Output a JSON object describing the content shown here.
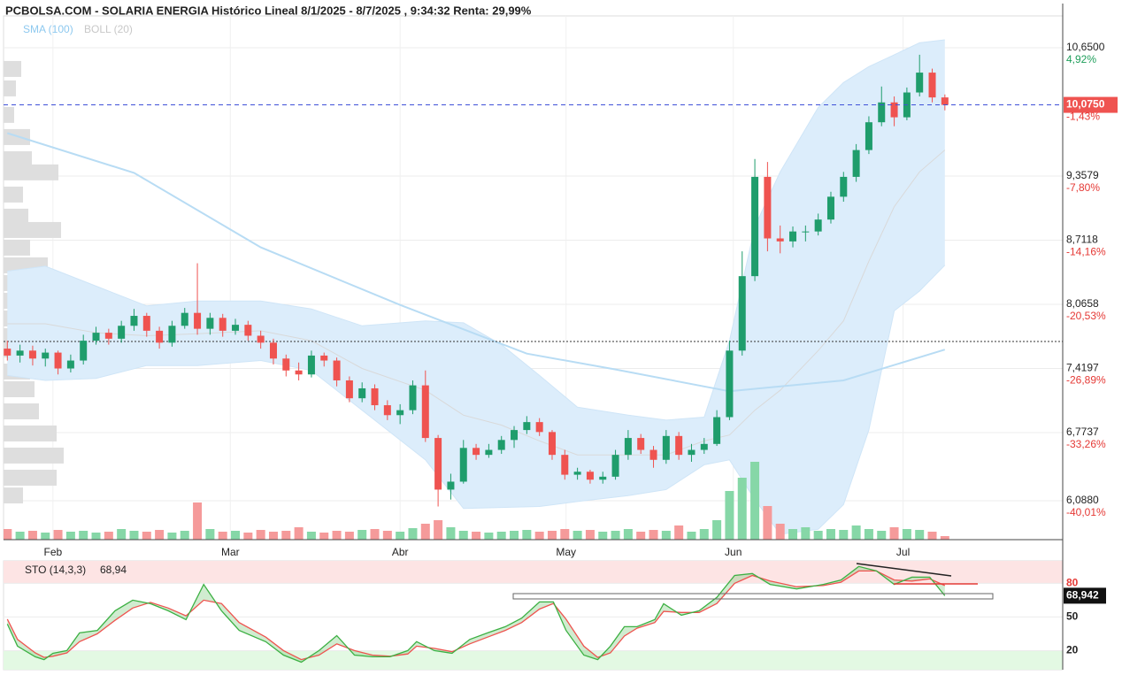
{
  "title": "PCBOLSA.COM - SOLARIA ENERGIA Histórico Lineal 8/1/2025 - 8/7/2025 , 9:34:32 Renta: 29,99%",
  "chart_data": [
    {
      "type": "candlestick",
      "up_color": "#1f9d6c",
      "down_color": "#ef5350",
      "xlim": [
        -0.3,
        83.3
      ],
      "ylim": [
        5.696,
        10.971
      ],
      "xticks": [
        {
          "value": 3.6,
          "label": "Feb"
        },
        {
          "value": 17.6,
          "label": "Mar"
        },
        {
          "value": 31.0,
          "label": "Abr"
        },
        {
          "value": 44.1,
          "label": "May"
        },
        {
          "value": 57.3,
          "label": "Jun"
        },
        {
          "value": 70.7,
          "label": "Jul"
        }
      ],
      "yticks": [
        {
          "value": 10.65,
          "label": "10,6500"
        },
        {
          "value": 9.3579,
          "label": "9,3579"
        },
        {
          "value": 8.7118,
          "label": "8,7118"
        },
        {
          "value": 8.0658,
          "label": "8,0658"
        },
        {
          "value": 7.4197,
          "label": "7,4197"
        },
        {
          "value": 6.7737,
          "label": "6,7737"
        },
        {
          "value": 6.088,
          "label": "6,0880"
        }
      ],
      "last_price": {
        "value": 10.075,
        "label": "10,0750"
      },
      "pct_labels": [
        {
          "value": 4.92,
          "label": "4,92%"
        },
        {
          "value": -1.43,
          "label": "-1,43%"
        },
        {
          "value": -7.8,
          "label": "-7,80%"
        },
        {
          "value": -14.16,
          "label": "-14,16%"
        },
        {
          "value": -20.53,
          "label": "-20,53%"
        },
        {
          "value": -26.89,
          "label": "-26,89%"
        },
        {
          "value": -33.26,
          "label": "-33,26%"
        },
        {
          "value": -40.01,
          "label": "-40,01%"
        }
      ],
      "reference_line": 7.692,
      "candles": [
        [
          7.62,
          7.7,
          7.5,
          7.55
        ],
        [
          7.55,
          7.66,
          7.48,
          7.6
        ],
        [
          7.6,
          7.65,
          7.45,
          7.52
        ],
        [
          7.52,
          7.62,
          7.44,
          7.58
        ],
        [
          7.58,
          7.6,
          7.36,
          7.42
        ],
        [
          7.42,
          7.56,
          7.38,
          7.5
        ],
        [
          7.5,
          7.76,
          7.46,
          7.7
        ],
        [
          7.7,
          7.84,
          7.66,
          7.78
        ],
        [
          7.78,
          7.82,
          7.66,
          7.72
        ],
        [
          7.72,
          7.9,
          7.68,
          7.85
        ],
        [
          7.85,
          8.02,
          7.8,
          7.95
        ],
        [
          7.95,
          7.98,
          7.74,
          7.8
        ],
        [
          7.8,
          7.84,
          7.62,
          7.68
        ],
        [
          7.68,
          7.9,
          7.64,
          7.85
        ],
        [
          7.85,
          8.03,
          7.82,
          7.98
        ],
        [
          7.98,
          8.48,
          7.76,
          7.82
        ],
        [
          7.82,
          7.98,
          7.76,
          7.93
        ],
        [
          7.93,
          7.97,
          7.74,
          7.8
        ],
        [
          7.8,
          7.92,
          7.76,
          7.86
        ],
        [
          7.86,
          7.9,
          7.7,
          7.75
        ],
        [
          7.75,
          7.8,
          7.62,
          7.68
        ],
        [
          7.68,
          7.72,
          7.46,
          7.52
        ],
        [
          7.52,
          7.56,
          7.34,
          7.4
        ],
        [
          7.4,
          7.48,
          7.3,
          7.36
        ],
        [
          7.36,
          7.6,
          7.33,
          7.55
        ],
        [
          7.55,
          7.58,
          7.44,
          7.5
        ],
        [
          7.5,
          7.53,
          7.24,
          7.3
        ],
        [
          7.3,
          7.34,
          7.08,
          7.12
        ],
        [
          7.12,
          7.28,
          7.08,
          7.22
        ],
        [
          7.22,
          7.26,
          7.0,
          7.05
        ],
        [
          7.05,
          7.1,
          6.9,
          6.95
        ],
        [
          6.95,
          7.06,
          6.86,
          7.0
        ],
        [
          7.0,
          7.3,
          6.96,
          7.25
        ],
        [
          7.25,
          7.4,
          6.68,
          6.72
        ],
        [
          6.72,
          6.75,
          6.03,
          6.2
        ],
        [
          6.2,
          6.36,
          6.1,
          6.28
        ],
        [
          6.28,
          6.7,
          6.26,
          6.62
        ],
        [
          6.62,
          6.66,
          6.5,
          6.55
        ],
        [
          6.55,
          6.66,
          6.52,
          6.6
        ],
        [
          6.6,
          6.74,
          6.56,
          6.7
        ],
        [
          6.7,
          6.84,
          6.62,
          6.8
        ],
        [
          6.8,
          6.94,
          6.76,
          6.88
        ],
        [
          6.88,
          6.92,
          6.74,
          6.78
        ],
        [
          6.78,
          6.8,
          6.5,
          6.55
        ],
        [
          6.55,
          6.6,
          6.3,
          6.35
        ],
        [
          6.35,
          6.42,
          6.3,
          6.38
        ],
        [
          6.38,
          6.4,
          6.26,
          6.3
        ],
        [
          6.3,
          6.38,
          6.26,
          6.33
        ],
        [
          6.33,
          6.6,
          6.3,
          6.55
        ],
        [
          6.55,
          6.8,
          6.5,
          6.72
        ],
        [
          6.72,
          6.76,
          6.56,
          6.6
        ],
        [
          6.6,
          6.64,
          6.42,
          6.5
        ],
        [
          6.5,
          6.8,
          6.46,
          6.74
        ],
        [
          6.74,
          6.78,
          6.5,
          6.55
        ],
        [
          6.55,
          6.66,
          6.48,
          6.6
        ],
        [
          6.6,
          6.72,
          6.56,
          6.66
        ],
        [
          6.66,
          7.0,
          6.64,
          6.93
        ],
        [
          6.93,
          7.7,
          6.9,
          7.6
        ],
        [
          7.6,
          8.6,
          7.55,
          8.35
        ],
        [
          8.35,
          9.53,
          8.3,
          9.35
        ],
        [
          9.35,
          9.5,
          8.6,
          8.73
        ],
        [
          8.73,
          8.86,
          8.58,
          8.7
        ],
        [
          8.7,
          8.85,
          8.64,
          8.8
        ],
        [
          8.8,
          8.86,
          8.7,
          8.8
        ],
        [
          8.8,
          8.98,
          8.76,
          8.92
        ],
        [
          8.92,
          9.2,
          8.88,
          9.15
        ],
        [
          9.15,
          9.4,
          9.1,
          9.35
        ],
        [
          9.35,
          9.68,
          9.3,
          9.62
        ],
        [
          9.62,
          9.96,
          9.58,
          9.9
        ],
        [
          9.9,
          10.26,
          9.86,
          10.1
        ],
        [
          10.1,
          10.16,
          9.86,
          9.95
        ],
        [
          9.95,
          10.25,
          9.92,
          10.2
        ],
        [
          10.2,
          10.58,
          10.16,
          10.4
        ],
        [
          10.4,
          10.44,
          10.1,
          10.15
        ],
        [
          10.15,
          10.18,
          10.02,
          10.075
        ]
      ],
      "volume_ylim": [
        0,
        100
      ],
      "volume_up_color": "#86d7a7",
      "volume_down_color": "#f59a9a",
      "volumes": [
        12,
        9,
        10,
        8,
        11,
        9,
        10,
        8,
        9,
        12,
        10,
        9,
        11,
        8,
        10,
        42,
        12,
        9,
        10,
        8,
        11,
        9,
        10,
        14,
        9,
        8,
        10,
        9,
        11,
        12,
        10,
        9,
        13,
        18,
        22,
        14,
        10,
        9,
        8,
        9,
        10,
        11,
        9,
        10,
        12,
        10,
        11,
        9,
        10,
        12,
        9,
        11,
        10,
        16,
        9,
        12,
        22,
        55,
        70,
        88,
        38,
        18,
        12,
        14,
        10,
        12,
        11,
        16,
        12,
        10,
        14,
        12,
        11,
        9,
        4
      ],
      "volume_profile": {
        "color": "#dedede",
        "prices": [
          10.437,
          10.241,
          9.974,
          9.751,
          9.528,
          9.395,
          9.172,
          8.949,
          8.815,
          8.637,
          8.459,
          8.28,
          8.102,
          7.924,
          7.746,
          7.612,
          7.389,
          7.211,
          6.988,
          6.765,
          6.543,
          6.32,
          6.141
        ],
        "values": [
          20,
          14,
          12,
          30,
          32,
          62,
          22,
          28,
          65,
          30,
          50,
          22,
          35,
          58,
          60,
          50,
          30,
          35,
          40,
          60,
          68,
          60,
          22
        ]
      },
      "sma": {
        "name": "SMA (100)",
        "color": "#b8dcf4",
        "x": [
          0,
          10,
          20,
          31,
          41,
          48,
          57,
          66,
          74
        ],
        "values": [
          9.79,
          9.39,
          8.64,
          8.06,
          7.57,
          7.41,
          7.19,
          7.3,
          7.61
        ]
      },
      "boll": {
        "name": "BOLL (20)",
        "color": "#d9d9d9",
        "fill": "#dcedfb",
        "x": [
          0,
          3,
          7,
          11,
          15,
          20,
          24,
          28,
          33,
          36,
          39,
          42,
          45,
          49,
          52,
          55,
          57,
          59,
          61,
          64,
          66,
          68,
          70,
          72,
          74
        ],
        "upper": [
          8.4,
          8.45,
          8.25,
          8.05,
          8.1,
          8.1,
          8.02,
          7.85,
          7.9,
          7.88,
          7.66,
          7.35,
          7.03,
          6.95,
          6.9,
          6.93,
          7.7,
          8.85,
          9.4,
          10.05,
          10.3,
          10.46,
          10.58,
          10.7,
          10.73
        ],
        "middle": [
          7.87,
          7.87,
          7.78,
          7.75,
          7.77,
          7.8,
          7.7,
          7.42,
          7.2,
          6.95,
          6.85,
          6.69,
          6.55,
          6.55,
          6.55,
          6.69,
          6.75,
          7.0,
          7.2,
          7.6,
          7.9,
          8.5,
          9.05,
          9.4,
          9.62
        ],
        "lower": [
          7.35,
          7.3,
          7.32,
          7.45,
          7.45,
          7.5,
          7.4,
          7.0,
          6.5,
          6.01,
          6.02,
          6.03,
          6.08,
          6.14,
          6.2,
          6.45,
          6.5,
          6.1,
          5.75,
          5.8,
          6.05,
          6.8,
          8.0,
          8.2,
          8.46
        ]
      }
    },
    {
      "type": "stochastic",
      "title": "STO (14,3,3)",
      "last": {
        "value": 68.94,
        "label": "68,94"
      },
      "axis_last": {
        "value": 68.942,
        "label": "68,942"
      },
      "xlim": [
        -0.3,
        83.3
      ],
      "ylim": [
        3,
        100
      ],
      "yticks": [
        20,
        50,
        80
      ],
      "ytick_colors": [
        "#222",
        "#222",
        "#e53935"
      ],
      "bands": [
        {
          "from": 80,
          "to": 100,
          "color": "#fde4e4"
        },
        {
          "from": 3,
          "to": 20,
          "color": "#e3f9e3"
        }
      ],
      "x": [
        0,
        0.8,
        2.2,
        2.9,
        3.6,
        4.7,
        5.7,
        7.1,
        8.5,
        9.9,
        11.3,
        12.7,
        14.1,
        15.5,
        16.9,
        18.3,
        20.4,
        21.8,
        23.2,
        24.6,
        26,
        27.4,
        28.8,
        30.2,
        31.6,
        32.3,
        33.7,
        35.1,
        36.5,
        37.9,
        39.3,
        40.6,
        42,
        43.1,
        44.1,
        45.5,
        46.6,
        47.6,
        48.7,
        49.7,
        51.1,
        51.8,
        53.2,
        54.6,
        56,
        57.4,
        58.8,
        60.2,
        62.3,
        64.4,
        65.8,
        67.2,
        68.6,
        70,
        71.4,
        72.8,
        74
      ],
      "k": {
        "color": "#3cb043",
        "values": [
          43.7,
          24,
          14.5,
          12,
          17.6,
          20,
          35.8,
          38,
          55.5,
          65,
          61.8,
          55.5,
          47.6,
          79,
          55.5,
          38,
          27.9,
          16,
          9.7,
          20,
          33.4,
          16,
          14.5,
          14.5,
          20,
          28,
          20,
          17.6,
          30,
          35.8,
          41.3,
          49,
          63.4,
          63.4,
          38,
          16,
          12,
          24,
          41.3,
          41.3,
          47.6,
          61.8,
          51.6,
          55.5,
          67.4,
          87,
          88.7,
          79,
          75,
          79,
          83,
          95,
          91,
          79,
          85.5,
          85.5,
          68.94
        ]
      },
      "d": {
        "color": "#ef5350",
        "values": [
          48,
          30,
          18,
          14,
          15,
          18,
          28,
          35,
          47,
          58,
          63,
          58,
          51,
          65,
          62,
          45,
          32,
          20,
          12,
          16,
          26,
          20,
          16,
          15,
          17,
          24,
          22,
          19,
          26,
          32,
          38,
          45,
          57,
          62,
          48,
          24,
          14,
          18,
          33,
          40,
          45,
          55,
          54,
          54,
          62,
          80,
          87,
          82,
          77,
          78,
          81,
          91,
          91,
          83,
          82,
          84,
          78
        ]
      }
    }
  ]
}
